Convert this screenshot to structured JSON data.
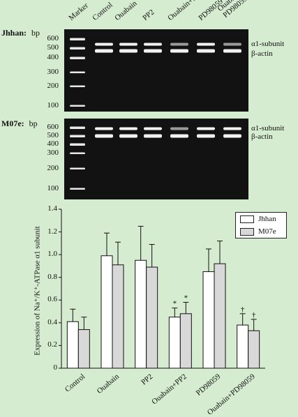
{
  "panel1": {
    "title": "Jhhan:",
    "bp_unit": "bp",
    "bp_labels": [
      "600",
      "500",
      "400",
      "300",
      "200",
      "100"
    ],
    "band_labels": [
      "α1-subunit",
      "β-actin"
    ]
  },
  "panel2": {
    "title": "M07e:",
    "bp_unit": "bp",
    "bp_labels": [
      "600",
      "500",
      "400",
      "300",
      "200",
      "100"
    ],
    "band_labels": [
      "α1-subunit",
      "β-actin"
    ]
  },
  "lanes": [
    "Marker",
    "Control",
    "Ouabain",
    "PP2",
    "Ouabain+PP2",
    "PD98059",
    "Ouabain+\nPD98059"
  ],
  "chart_data": {
    "type": "bar",
    "categories": [
      "Control",
      "Ouabain",
      "PP2",
      "Ouabain+PP2",
      "PD98059",
      "Ouabain+PD98059"
    ],
    "series": [
      {
        "name": "Jhhan",
        "values": [
          0.41,
          0.99,
          0.95,
          0.45,
          0.85,
          0.38
        ],
        "errors": [
          0.11,
          0.2,
          0.3,
          0.08,
          0.2,
          0.1
        ],
        "color": "#ffffff"
      },
      {
        "name": "M07e",
        "values": [
          0.34,
          0.91,
          0.89,
          0.48,
          0.92,
          0.33
        ],
        "errors": [
          0.11,
          0.2,
          0.2,
          0.1,
          0.2,
          0.1
        ],
        "color": "#d8d8d8"
      }
    ],
    "annotations": [
      {
        "category": "Ouabain+PP2",
        "series": "Jhhan",
        "symbol": "*"
      },
      {
        "category": "Ouabain+PP2",
        "series": "M07e",
        "symbol": "*"
      },
      {
        "category": "Ouabain+PD98059",
        "series": "Jhhan",
        "symbol": "†"
      },
      {
        "category": "Ouabain+PD98059",
        "series": "M07e",
        "symbol": "†"
      }
    ],
    "ylabel": "Expression of Na⁺/K⁺-ATPase α1 subunit",
    "ylim": [
      0,
      1.4
    ],
    "yticks": [
      "0",
      "0.2",
      "0.4",
      "0.6",
      "0.8",
      "1.0",
      "1.2",
      "1.4"
    ],
    "legend": "top-right"
  }
}
